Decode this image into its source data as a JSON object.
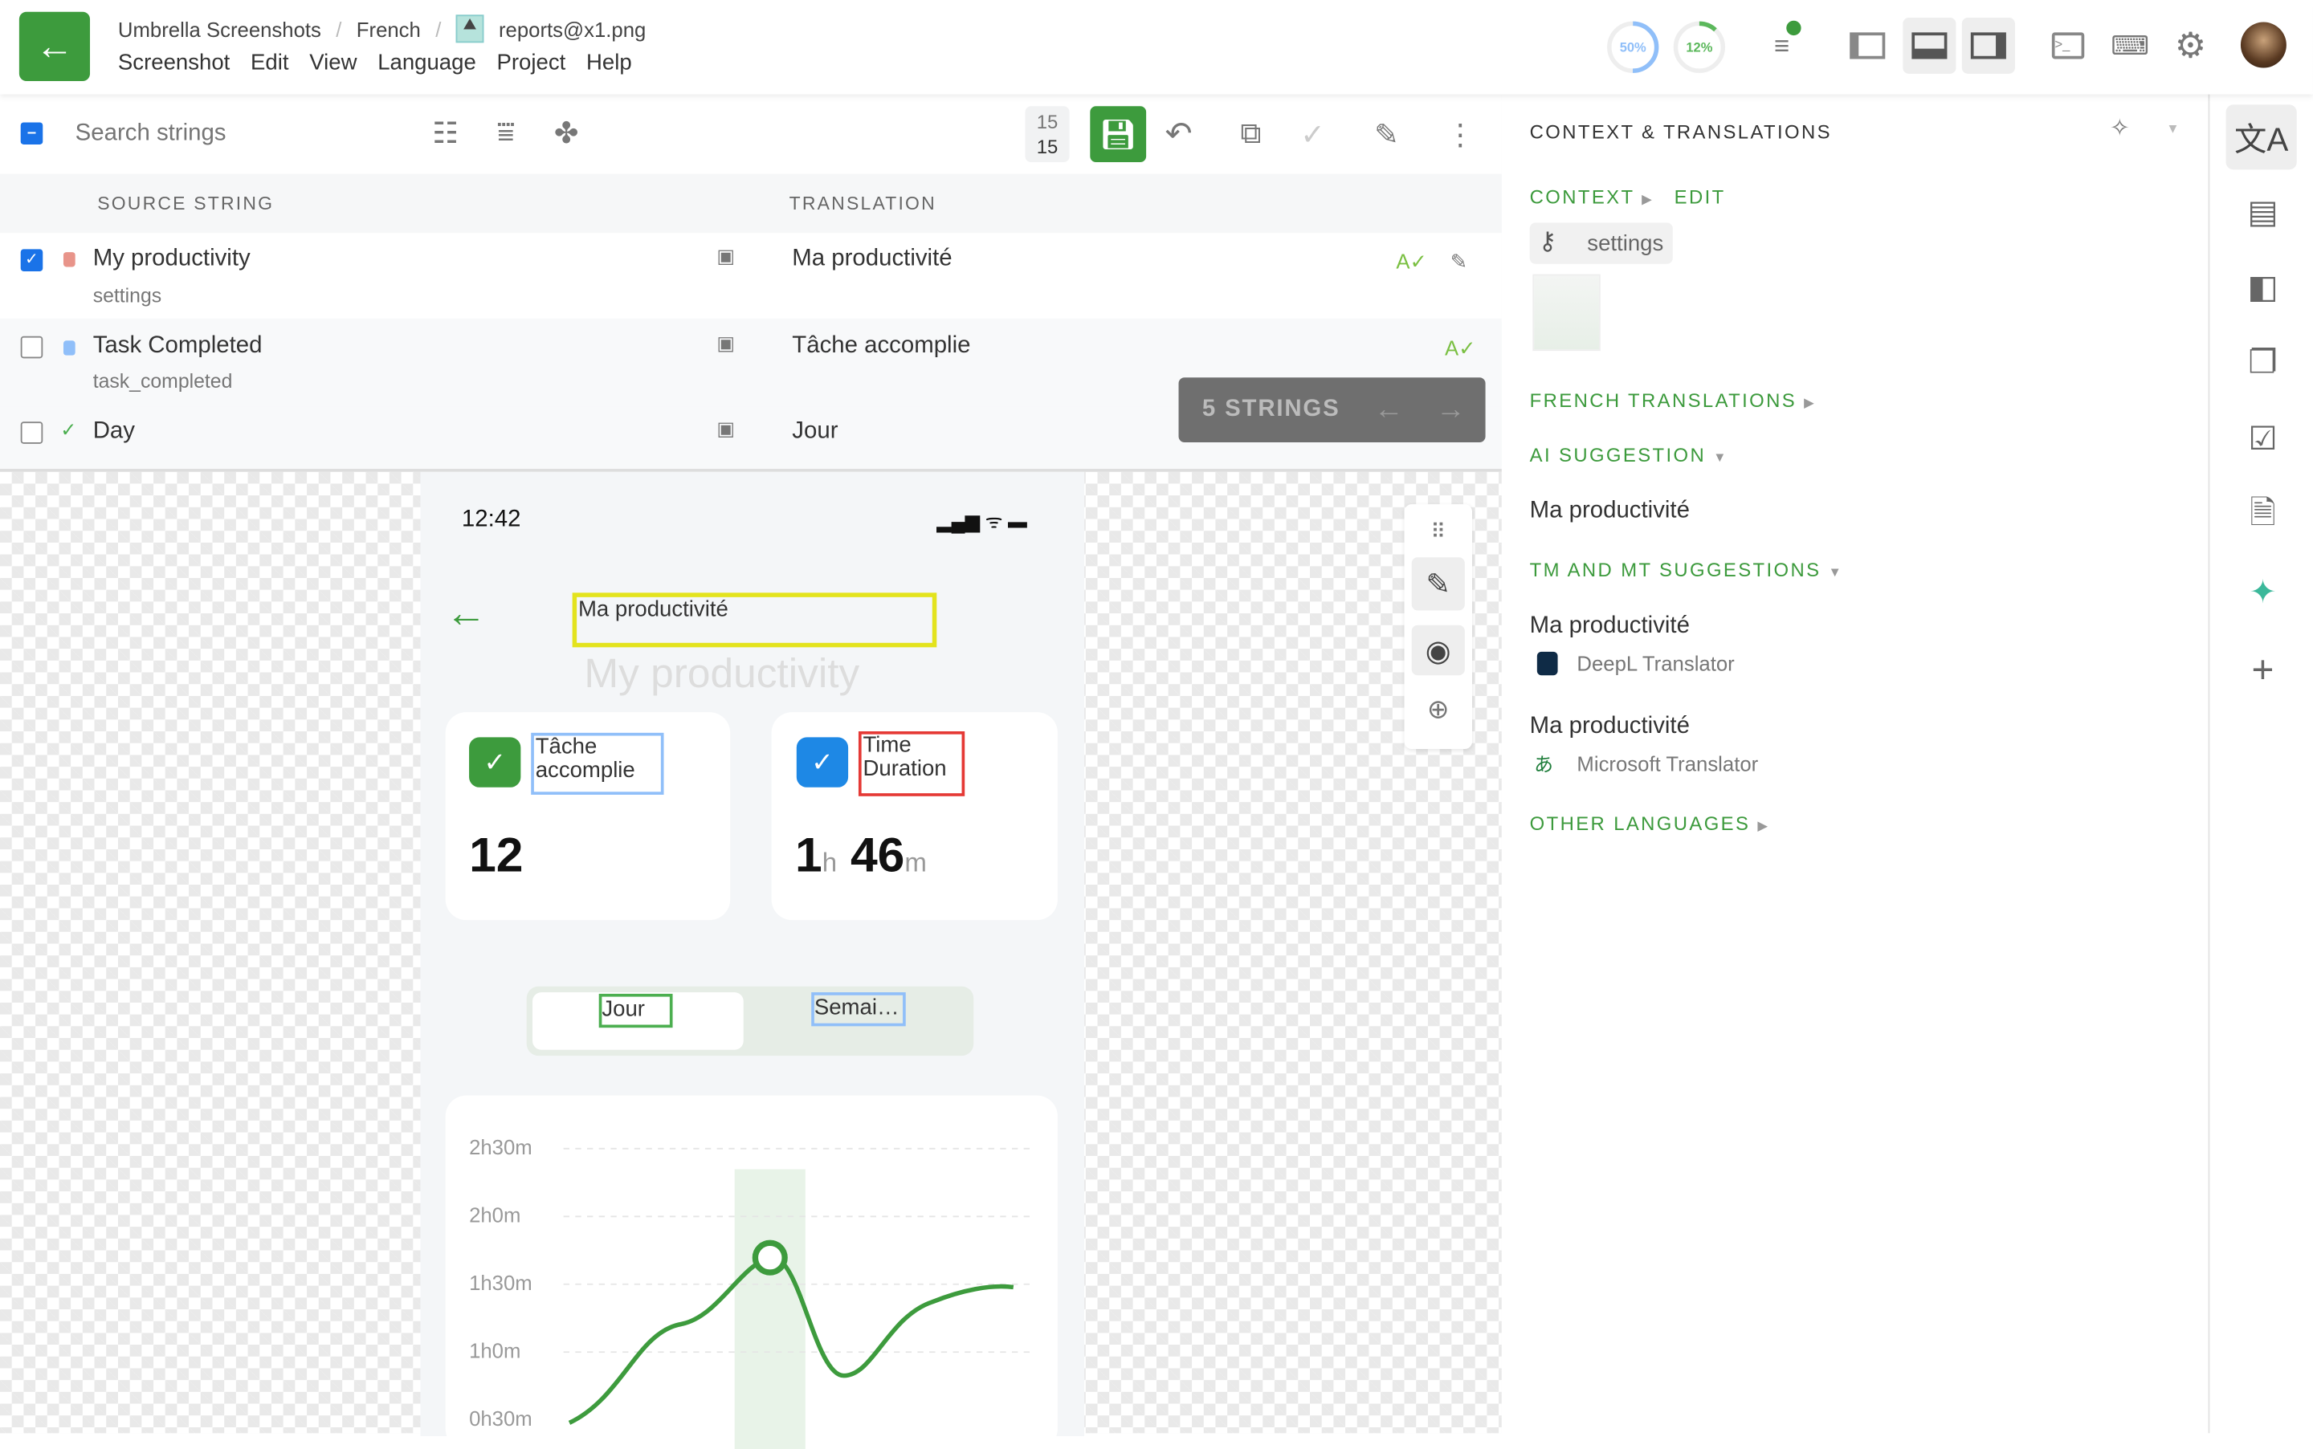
{
  "header": {
    "breadcrumb": [
      "Umbrella Screenshots",
      "French",
      "reports@x1.png"
    ],
    "menu": [
      "Screenshot",
      "Edit",
      "View",
      "Language",
      "Project",
      "Help"
    ],
    "progress": [
      {
        "label": "50%",
        "value": 50,
        "color": "#90bff9"
      },
      {
        "label": "12%",
        "value": 12,
        "color": "#5cb85c"
      }
    ],
    "accent": "#3d9b3d"
  },
  "toolbar": {
    "search_placeholder": "Search strings",
    "counter_top": "15",
    "counter_bottom": "15"
  },
  "table": {
    "columns": [
      "SOURCE STRING",
      "TRANSLATION"
    ],
    "rows": [
      {
        "source": "My productivity",
        "key": "settings",
        "translation": "Ma productivité",
        "checked": true,
        "status": "untranslated"
      },
      {
        "source": "Task Completed",
        "key": "task_completed",
        "translation": "Tâche accomplie",
        "checked": false,
        "status": "translated"
      },
      {
        "source": "Day",
        "key": "",
        "translation": "Jour",
        "checked": false,
        "status": "approved"
      }
    ],
    "selection_bar": "5 STRINGS"
  },
  "phone": {
    "time": "12:42",
    "title_overlay": "Ma productivité",
    "title_source": "My productivity",
    "card1_label": "Tâche accomplie",
    "card1_value": "12",
    "card2_label": "Time Duration",
    "card2_h": "1",
    "card2_h_unit": "h",
    "card2_m": "46",
    "card2_m_unit": "m",
    "seg1": "Jour",
    "seg2": "Semai…",
    "y_ticks": [
      "2h30m",
      "2h0m",
      "1h30m",
      "1h0m",
      "0h30m"
    ]
  },
  "panel": {
    "title": "CONTEXT & TRANSLATIONS",
    "context": "CONTEXT",
    "edit": "EDIT",
    "key": "settings",
    "french": "FRENCH TRANSLATIONS",
    "ai": "AI SUGGESTION",
    "ai_text": "Ma productivité",
    "tm": "TM AND MT SUGGESTIONS",
    "suggestions": [
      {
        "text": "Ma productivité",
        "provider": "DeepL Translator"
      },
      {
        "text": "Ma productivité",
        "provider": "Microsoft Translator"
      }
    ],
    "other": "OTHER LANGUAGES"
  }
}
